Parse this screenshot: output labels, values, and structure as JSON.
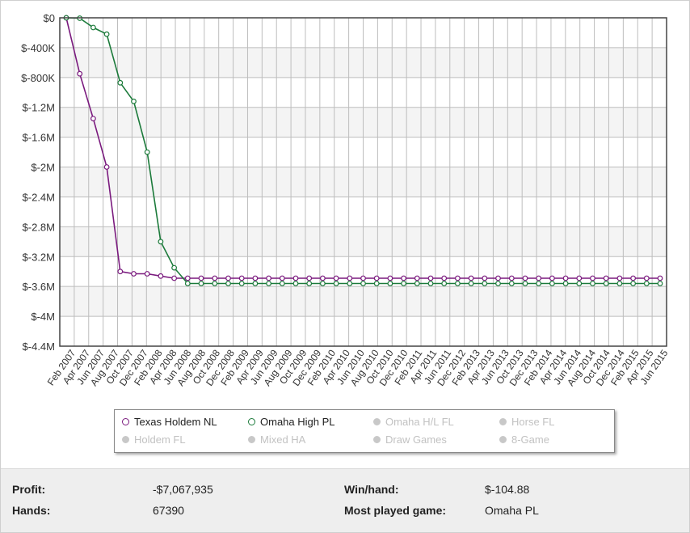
{
  "chart_data": {
    "type": "line",
    "yticks": [
      "$0",
      "$-400K",
      "$-800K",
      "$-1.2M",
      "$-1.6M",
      "$-2M",
      "$-2.4M",
      "$-2.8M",
      "$-3.2M",
      "$-3.6M",
      "$-4M",
      "$-4.4M"
    ],
    "ylim": [
      -4400000,
      0
    ],
    "xticks": [
      "Feb 2007",
      "Apr 2007",
      "Jun 2007",
      "Aug 2007",
      "Oct 2007",
      "Dec 2007",
      "Feb 2008",
      "Apr 2008",
      "Jun 2008",
      "Aug 2008",
      "Oct 2008",
      "Dec 2008",
      "Feb 2009",
      "Apr 2009",
      "Jun 2009",
      "Aug 2009",
      "Oct 2009",
      "Dec 2009",
      "Feb 2010",
      "Apr 2010",
      "Jun 2010",
      "Aug 2010",
      "Oct 2010",
      "Dec 2010",
      "Feb 2011",
      "Apr 2011",
      "Jun 2011",
      "Dec 2012",
      "Feb 2013",
      "Apr 2013",
      "Jun 2013",
      "Oct 2013",
      "Dec 2013",
      "Feb 2014",
      "Apr 2014",
      "Jun 2014",
      "Aug 2014",
      "Oct 2014",
      "Dec 2014",
      "Feb 2015",
      "Apr 2015",
      "Jun 2015"
    ],
    "grid": true,
    "legend_position": "bottom",
    "series": [
      {
        "name": "Texas Holdem NL",
        "color": "#7a1a7e",
        "values": [
          0,
          -750000,
          -1350000,
          -2000000,
          -3400000,
          -3430000,
          -3430000,
          -3460000,
          -3490000,
          -3490000,
          -3490000,
          -3490000,
          -3490000,
          -3490000,
          -3490000,
          -3490000,
          -3490000,
          -3490000,
          -3490000,
          -3490000,
          -3490000,
          -3490000,
          -3490000,
          -3490000,
          -3490000,
          -3490000,
          -3490000,
          -3490000,
          -3490000,
          -3490000,
          -3490000,
          -3490000,
          -3490000,
          -3490000,
          -3490000,
          -3490000,
          -3490000,
          -3490000,
          -3490000,
          -3490000,
          -3490000,
          -3490000,
          -3490000,
          -3490000,
          -3490000
        ]
      },
      {
        "name": "Omaha High PL",
        "color": "#1b7a3a",
        "values": [
          0,
          -5000,
          -130000,
          -220000,
          -870000,
          -1120000,
          -1800000,
          -3000000,
          -3350000,
          -3560000,
          -3560000,
          -3560000,
          -3560000,
          -3560000,
          -3560000,
          -3560000,
          -3560000,
          -3560000,
          -3560000,
          -3560000,
          -3560000,
          -3560000,
          -3560000,
          -3560000,
          -3560000,
          -3560000,
          -3560000,
          -3560000,
          -3560000,
          -3560000,
          -3560000,
          -3560000,
          -3560000,
          -3560000,
          -3560000,
          -3560000,
          -3560000,
          -3560000,
          -3560000,
          -3560000,
          -3560000,
          -3560000,
          -3560000,
          -3560000,
          -3560000
        ]
      }
    ]
  },
  "legend": {
    "items": [
      {
        "label": "Texas Holdem NL",
        "active": true,
        "color": "#7a1a7e"
      },
      {
        "label": "Omaha High PL",
        "active": true,
        "color": "#1b7a3a"
      },
      {
        "label": "Omaha H/L FL",
        "active": false
      },
      {
        "label": "Horse FL",
        "active": false
      },
      {
        "label": "Holdem FL",
        "active": false
      },
      {
        "label": "Mixed HA",
        "active": false
      },
      {
        "label": "Draw Games",
        "active": false
      },
      {
        "label": "8-Game",
        "active": false
      }
    ]
  },
  "stats": {
    "profit_label": "Profit:",
    "profit_value": "-$7,067,935",
    "hands_label": "Hands:",
    "hands_value": "67390",
    "winhand_label": "Win/hand:",
    "winhand_value": "$-104.88",
    "most_played_label": "Most played game:",
    "most_played_value": "Omaha PL"
  }
}
